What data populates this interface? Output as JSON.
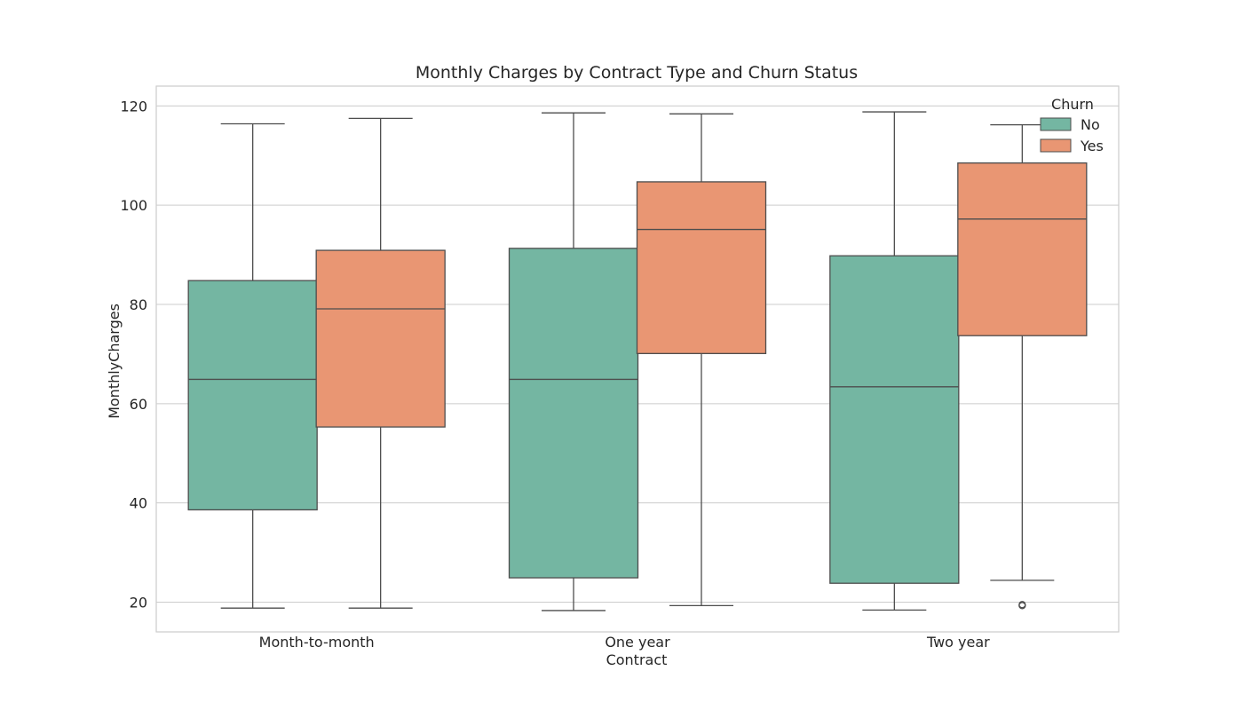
{
  "chart_data": {
    "type": "boxplot",
    "title": "Monthly Charges by Contract Type and Churn Status",
    "xlabel": "Contract",
    "ylabel": "MonthlyCharges",
    "ylim": [
      14,
      124
    ],
    "yticks": [
      20,
      40,
      60,
      80,
      100,
      120
    ],
    "grid": true,
    "categories": [
      "Month-to-month",
      "One year",
      "Two year"
    ],
    "legend": {
      "title": "Churn",
      "placement": "top-right"
    },
    "series": [
      {
        "name": "No",
        "color": "#74b6a2",
        "boxes": [
          {
            "whisker_low": 18.8,
            "q1": 38.6,
            "median": 64.9,
            "q3": 84.8,
            "whisker_high": 116.4,
            "outliers": []
          },
          {
            "whisker_low": 18.3,
            "q1": 24.9,
            "median": 64.9,
            "q3": 91.3,
            "whisker_high": 118.6,
            "outliers": []
          },
          {
            "whisker_low": 18.4,
            "q1": 23.8,
            "median": 63.4,
            "q3": 89.8,
            "whisker_high": 118.8,
            "outliers": []
          }
        ]
      },
      {
        "name": "Yes",
        "color": "#e99673",
        "boxes": [
          {
            "whisker_low": 18.8,
            "q1": 55.3,
            "median": 79.1,
            "q3": 90.9,
            "whisker_high": 117.5,
            "outliers": []
          },
          {
            "whisker_low": 19.3,
            "q1": 70.1,
            "median": 95.1,
            "q3": 104.7,
            "whisker_high": 118.4,
            "outliers": []
          },
          {
            "whisker_low": 24.4,
            "q1": 73.7,
            "median": 97.2,
            "q3": 108.5,
            "whisker_high": 116.2,
            "outliers": [
              19.3,
              19.5
            ]
          }
        ]
      }
    ]
  }
}
